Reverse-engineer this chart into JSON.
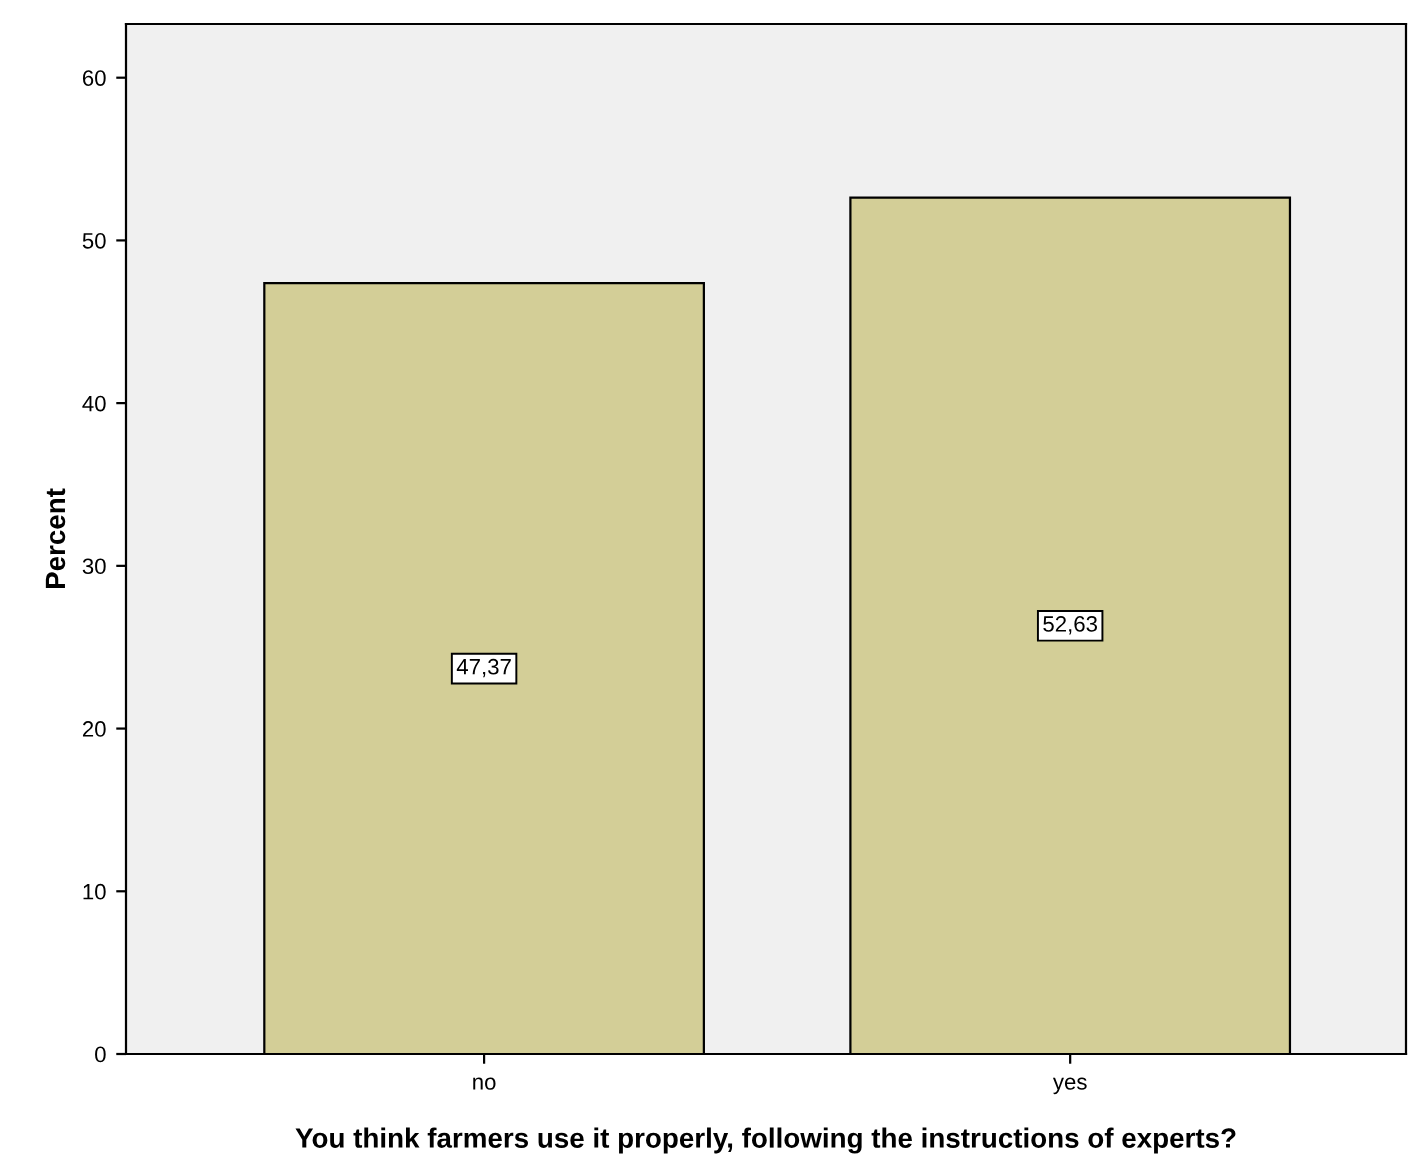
{
  "chart_data": {
    "type": "bar",
    "xlabel": "You think farmers use it properly, following the instructions of experts?",
    "ylabel": "Percent",
    "categories": [
      "no",
      "yes"
    ],
    "values": [
      47.37,
      52.63
    ],
    "value_labels": [
      "47,37",
      "52,63"
    ],
    "color": "#d3ce97",
    "ylim": [
      0,
      63.3
    ],
    "yticks": [
      0,
      10,
      20,
      30,
      40,
      50,
      60
    ],
    "grid": false,
    "legend": false
  }
}
